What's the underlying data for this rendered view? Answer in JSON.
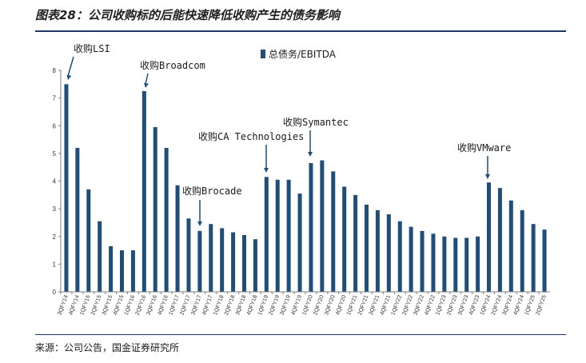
{
  "title": "图表28：公司收购标的后能快速降低收购产生的债务影响",
  "source": "来源：公司公告，国金证券研究所",
  "colors": {
    "bar": "#1f4e79",
    "rule": "#1f3864",
    "axis": "#7f7f7f"
  },
  "chart_data": {
    "type": "bar",
    "categories": [
      "3QFY14",
      "4QFY14",
      "1QFY15",
      "2QFY15",
      "3QFY15",
      "4QFY15",
      "1QFY16",
      "2QFY16",
      "3QFY16",
      "4QFY16",
      "1QFY17",
      "2QFY17",
      "3QFY17",
      "4QFY17",
      "1QFY18",
      "2QFY18",
      "3QFY18",
      "4QFY18",
      "1QFY19",
      "2QFY19",
      "3QFY19",
      "4QFY19",
      "1QFY20",
      "2QFY20",
      "3QFY20",
      "4QFY20",
      "1QFY21",
      "2QFY21",
      "3QFY21",
      "4QFY21",
      "1QFY22",
      "2QFY22",
      "3QFY22",
      "4QFY22",
      "1QFY23",
      "2QFY23",
      "3QFY23",
      "4QFY23",
      "1QFY24",
      "2QFY24",
      "3QFY24",
      "4QFY24",
      "1QFY25",
      "2QFY25"
    ],
    "series": [
      {
        "name": "总债务/EBITDA",
        "values": [
          7.5,
          5.2,
          3.7,
          2.55,
          1.65,
          1.5,
          1.5,
          7.25,
          5.95,
          5.2,
          3.85,
          2.65,
          2.2,
          2.45,
          2.3,
          2.15,
          2.05,
          1.9,
          4.15,
          4.05,
          4.05,
          3.55,
          4.65,
          4.75,
          4.35,
          3.8,
          3.5,
          3.15,
          2.95,
          2.8,
          2.55,
          2.35,
          2.2,
          2.1,
          2.0,
          1.95,
          1.95,
          2.0,
          3.95,
          3.75,
          3.3,
          2.95,
          2.45,
          2.25
        ]
      }
    ],
    "ylim": [
      0,
      8
    ],
    "yticks": [
      0,
      1,
      2,
      3,
      4,
      5,
      6,
      7,
      8
    ],
    "legend_position": "top-center",
    "grid": false,
    "annotations": [
      {
        "text": "收购LSI",
        "category_index": 0
      },
      {
        "text": "收购Broadcom",
        "category_index": 7
      },
      {
        "text": "收购Brocade",
        "category_index": 12
      },
      {
        "text": "收购CA Technologies",
        "category_index": 18
      },
      {
        "text": "收购Symantec",
        "category_index": 22
      },
      {
        "text": "收购VMware",
        "category_index": 38
      }
    ]
  }
}
